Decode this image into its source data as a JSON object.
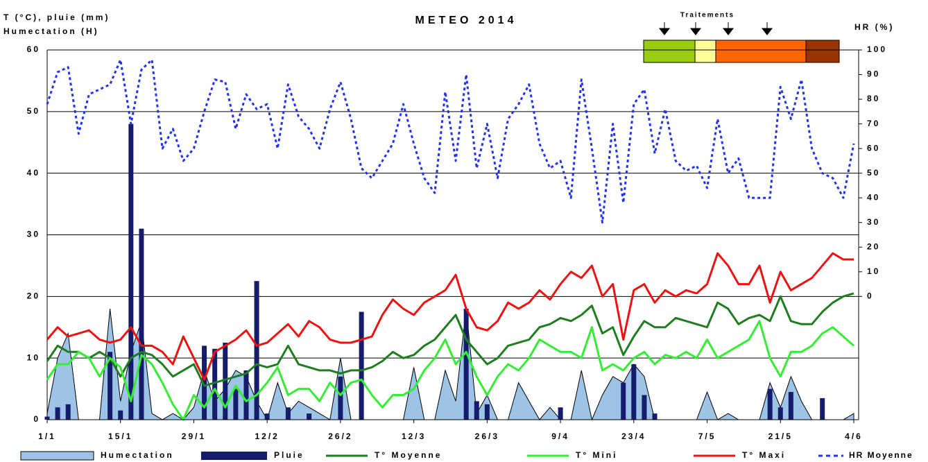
{
  "chart_data": {
    "type": "combo",
    "title": "METEO 2014",
    "y_label": "T (°C), pluie (mm)",
    "y_label2": "Humectation (H)",
    "y2_label": "HR (%)",
    "annotation": "Traitements",
    "categories": [
      "1/1",
      null,
      null,
      null,
      null,
      null,
      null,
      "15/1",
      null,
      null,
      null,
      null,
      null,
      null,
      "29/1",
      null,
      null,
      null,
      null,
      null,
      null,
      "12/2",
      null,
      null,
      null,
      null,
      null,
      null,
      "26/2",
      null,
      null,
      null,
      null,
      null,
      null,
      "12/3",
      null,
      null,
      null,
      null,
      null,
      null,
      "26/3",
      null,
      null,
      null,
      null,
      null,
      null,
      "9/4",
      null,
      null,
      null,
      null,
      null,
      null,
      "23/4",
      null,
      null,
      null,
      null,
      null,
      null,
      "7/5",
      null,
      null,
      null,
      null,
      null,
      null,
      "21/5",
      null,
      null,
      null,
      null,
      null,
      null,
      "4/6"
    ],
    "ylim": [
      0,
      60
    ],
    "yticks": [
      0,
      10,
      20,
      30,
      40,
      50,
      60
    ],
    "y2lim": [
      -50,
      100
    ],
    "y2ticks": [
      0,
      10,
      20,
      30,
      40,
      50,
      60,
      70,
      80,
      90,
      100
    ],
    "grid": true,
    "series": [
      {
        "name": "Humectation",
        "type": "area",
        "color": "#9dc3e6",
        "values": [
          1,
          10,
          14,
          0,
          0,
          0,
          18,
          3,
          11,
          16,
          1,
          0,
          1,
          0,
          2,
          8,
          3,
          5,
          8,
          7,
          3,
          0,
          6,
          1,
          3,
          2,
          1,
          0,
          10,
          0,
          0,
          0,
          0,
          0,
          0,
          8.5,
          0,
          0,
          8,
          3,
          18,
          1,
          4,
          0,
          0,
          6,
          3,
          0,
          2,
          0,
          0,
          8,
          0,
          4,
          7,
          6,
          9,
          7,
          0,
          0,
          0,
          0,
          0,
          4.5,
          0,
          1,
          0,
          0,
          0,
          6,
          2,
          7,
          3,
          0,
          0,
          0,
          0,
          1
        ]
      },
      {
        "name": "Pluie",
        "type": "bar",
        "color": "#141c6b",
        "values": [
          0.5,
          2,
          2.5,
          0,
          0,
          0,
          11,
          1.5,
          48,
          31,
          0,
          0,
          0,
          0,
          0,
          12,
          11.5,
          12.5,
          5,
          8,
          22.5,
          1,
          0,
          2,
          0,
          1,
          0,
          0,
          7,
          0,
          17.5,
          0,
          0,
          0,
          0,
          0,
          0,
          0,
          0,
          0,
          18,
          3,
          2.5,
          0,
          0,
          0,
          0,
          0,
          0,
          2,
          0,
          0,
          0,
          0,
          0,
          6,
          9,
          4,
          1,
          0,
          0,
          0,
          0,
          0,
          0,
          0,
          0,
          0,
          0,
          5,
          2,
          4.5,
          0,
          0,
          3.5,
          0,
          0,
          0
        ]
      },
      {
        "name": "T° Moyenne",
        "type": "line",
        "color": "#1e7d1e",
        "values": [
          9.5,
          12,
          11,
          11,
          10,
          11,
          10,
          7,
          10,
          11,
          10.5,
          9,
          7,
          8,
          9,
          5.5,
          6,
          6.5,
          7,
          7.5,
          9,
          8.5,
          9,
          12,
          9,
          8.5,
          8,
          8,
          7.5,
          8,
          8,
          8.5,
          9.5,
          11,
          10,
          10.5,
          12,
          13,
          15,
          17,
          13,
          11,
          9,
          10,
          12,
          12.5,
          13,
          15,
          15.5,
          16.5,
          16,
          17,
          18.5,
          14,
          15,
          10.5,
          13.5,
          16,
          15,
          15,
          16.5,
          16,
          15.5,
          15,
          19,
          18,
          15.5,
          16.5,
          17,
          16,
          20,
          16,
          15.5,
          15.5,
          17.5,
          19,
          20,
          20.5
        ]
      },
      {
        "name": "T° Mini",
        "type": "line",
        "color": "#33ee33",
        "values": [
          6.5,
          9,
          9,
          11,
          10,
          7,
          10,
          8.5,
          3,
          10.5,
          9,
          6,
          2.5,
          0,
          4,
          2,
          5,
          2,
          5.5,
          3,
          4,
          6,
          8.5,
          4,
          5,
          5,
          3,
          6,
          4,
          6,
          6.5,
          4,
          2,
          4,
          4,
          5,
          8,
          10,
          13,
          9,
          11,
          7,
          4,
          7,
          9,
          8,
          10,
          13,
          12,
          11,
          11,
          10,
          15,
          8,
          9,
          8,
          10,
          11,
          9,
          10.5,
          10,
          11,
          10,
          13,
          10,
          11,
          12,
          13,
          16,
          10,
          7,
          11,
          11,
          12,
          14,
          15,
          13.5,
          12
        ]
      },
      {
        "name": "T° Maxi",
        "type": "line",
        "color": "#ee1111",
        "values": [
          13,
          15,
          13.5,
          14,
          14.5,
          13,
          12.5,
          13,
          15,
          12,
          12,
          11,
          9,
          13.5,
          10,
          6.5,
          11,
          12,
          13,
          14.5,
          12,
          12.5,
          14,
          15.5,
          13.5,
          16,
          15,
          13,
          12.5,
          12.5,
          13,
          13.5,
          17,
          19.5,
          18,
          17,
          19,
          20,
          21,
          23.5,
          18,
          15,
          14.5,
          16,
          19,
          18,
          19,
          21,
          19.5,
          22,
          24,
          23,
          25,
          20,
          22,
          13,
          21,
          22,
          19,
          21,
          20,
          21,
          20.5,
          22,
          27,
          25,
          22,
          22,
          25,
          19,
          24,
          21,
          22,
          23,
          25,
          27,
          26,
          26
        ]
      },
      {
        "name": "HR Moyenne",
        "type": "dotted",
        "axis": "y2",
        "color": "#2233ee",
        "values": [
          78,
          91,
          93,
          66,
          82,
          84,
          86,
          96,
          70,
          92,
          96,
          60,
          68,
          55,
          60,
          75,
          88,
          87,
          68,
          82,
          76,
          78,
          60,
          86,
          73,
          68,
          60,
          76,
          87,
          72,
          52,
          48,
          55,
          62,
          78,
          62,
          48,
          42,
          83,
          55,
          90,
          52,
          70,
          48,
          72,
          78,
          86,
          62,
          52,
          55,
          40,
          88,
          60,
          30,
          70,
          38,
          78,
          84,
          58,
          76,
          55,
          51,
          53,
          44,
          72,
          50,
          56,
          40,
          40,
          40,
          85,
          72,
          88,
          60,
          50,
          48,
          40,
          62
        ]
      }
    ]
  }
}
